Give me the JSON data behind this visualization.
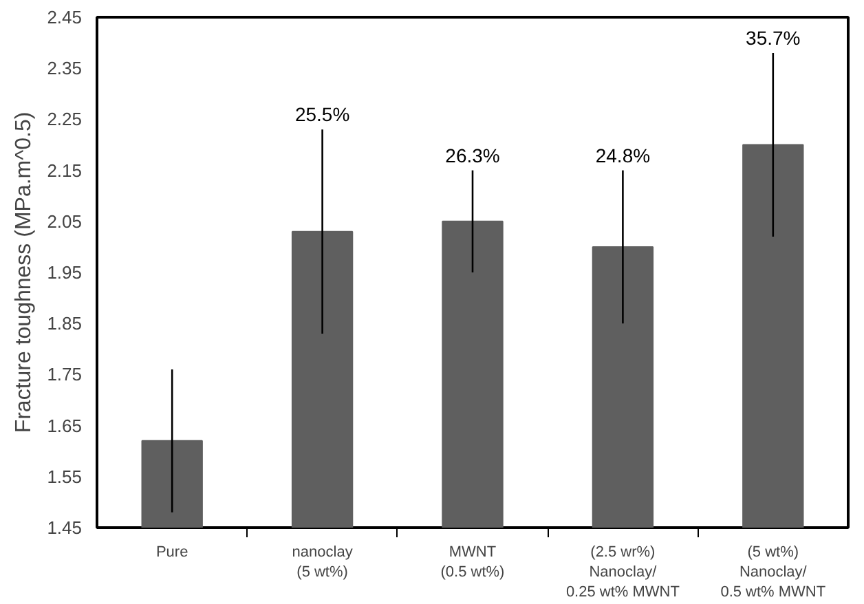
{
  "chart_data": {
    "type": "bar",
    "ylabel": "Fracture toughness (MPa.m^0.5)",
    "categories": [
      "Pure",
      "nanoclay\n(5 wt%)",
      "MWNT\n(0.5 wt%)",
      "(2.5 wr%)\nNanoclay/\n0.25 wt% MWNT",
      "(5 wt%)\nNanoclay/\n0.5 wt% MWNT"
    ],
    "values": [
      1.62,
      2.03,
      2.05,
      2.0,
      2.2
    ],
    "errors": [
      [
        1.48,
        1.76
      ],
      [
        1.83,
        2.23
      ],
      [
        1.95,
        2.15
      ],
      [
        1.85,
        2.15
      ],
      [
        2.02,
        2.38
      ]
    ],
    "color": "#5f5f5f",
    "annotations": [
      {
        "text": "25.5%",
        "x": "nanoclay\n(5 wt%)",
        "y": 2.23
      },
      {
        "text": "26.3%",
        "x": "MWNT\n(0.5 wt%)",
        "y": 2.15
      },
      {
        "text": "24.8%",
        "x": "(2.5 wr%)\nNanoclay/\n0.25 wt% MWNT",
        "y": 2.15
      },
      {
        "text": "35.7%",
        "x": "(5 wt%)\nNanoclay/\n0.5 wt% MWNT",
        "y": 2.38
      }
    ],
    "ylim": [
      1.45,
      2.45
    ],
    "yticks": [
      1.45,
      1.55,
      1.65,
      1.75,
      1.85,
      1.95,
      2.05,
      2.15,
      2.25,
      2.35,
      2.45
    ],
    "grid": false
  }
}
